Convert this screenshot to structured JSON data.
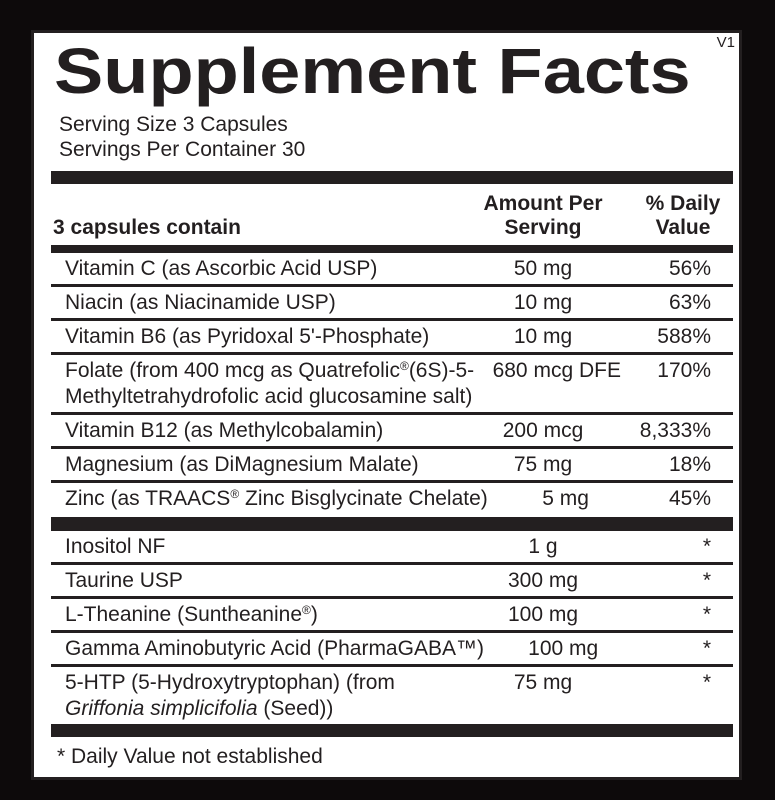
{
  "colors": {
    "ink": "#231f20",
    "paper": "#ffffff",
    "background": "#0d0a0b"
  },
  "version_tag": "V1",
  "title": "Supplement Facts",
  "serving_info": {
    "line1": "Serving Size 3 Capsules",
    "line2": "Servings Per Container 30"
  },
  "table": {
    "header": {
      "name_col": "3 capsules contain",
      "amount_col": "Amount Per Serving",
      "dv_col": "% Daily Value"
    },
    "sections": [
      {
        "rows": [
          {
            "name_segments": [
              {
                "type": "text",
                "value": "Vitamin C (as Ascorbic Acid USP)"
              }
            ],
            "amount": "50 mg",
            "daily_value": "56%"
          },
          {
            "name_segments": [
              {
                "type": "text",
                "value": "Niacin (as Niacinamide USP)"
              }
            ],
            "amount": "10 mg",
            "daily_value": "63%"
          },
          {
            "name_segments": [
              {
                "type": "text",
                "value": "Vitamin B6 (as Pyridoxal 5'-Phosphate)"
              }
            ],
            "amount": "10 mg",
            "daily_value": "588%"
          },
          {
            "name_segments": [
              {
                "type": "text",
                "value": "Folate (from 400 mcg as Quatrefolic"
              },
              {
                "type": "sup",
                "value": "®"
              },
              {
                "type": "text",
                "value": "(6S)-5-"
              },
              {
                "type": "break"
              },
              {
                "type": "text",
                "value": "Methyltetrahydrofolic acid glucosamine salt)"
              }
            ],
            "amount": "680 mcg DFE",
            "daily_value": "170%"
          },
          {
            "name_segments": [
              {
                "type": "text",
                "value": "Vitamin B12 (as Methylcobalamin)"
              }
            ],
            "amount": "200 mcg",
            "daily_value": "8,333%"
          },
          {
            "name_segments": [
              {
                "type": "text",
                "value": "Magnesium (as DiMagnesium Malate)"
              }
            ],
            "amount": "75 mg",
            "daily_value": "18%"
          },
          {
            "name_segments": [
              {
                "type": "text",
                "value": "Zinc (as TRAACS"
              },
              {
                "type": "sup",
                "value": "®"
              },
              {
                "type": "text",
                "value": " Zinc Bisglycinate Chelate)"
              }
            ],
            "amount": "5 mg",
            "daily_value": "45%"
          }
        ]
      },
      {
        "rows": [
          {
            "name_segments": [
              {
                "type": "text",
                "value": "Inositol NF"
              }
            ],
            "amount": "1 g",
            "daily_value": "*"
          },
          {
            "name_segments": [
              {
                "type": "text",
                "value": "Taurine USP"
              }
            ],
            "amount": "300 mg",
            "daily_value": "*"
          },
          {
            "name_segments": [
              {
                "type": "text",
                "value": "L-Theanine (Suntheanine"
              },
              {
                "type": "sup",
                "value": "®"
              },
              {
                "type": "text",
                "value": ")"
              }
            ],
            "amount": "100 mg",
            "daily_value": "*"
          },
          {
            "name_segments": [
              {
                "type": "text",
                "value": "Gamma Aminobutyric Acid (PharmaGABA™)"
              }
            ],
            "amount": "100 mg",
            "daily_value": "*"
          },
          {
            "name_segments": [
              {
                "type": "text",
                "value": "5-HTP (5-Hydroxytryptophan) (from"
              },
              {
                "type": "break"
              },
              {
                "type": "italic",
                "value": "Griffonia simplicifolia"
              },
              {
                "type": "text",
                "value": " (Seed))"
              }
            ],
            "amount": "75 mg",
            "daily_value": "*"
          }
        ]
      }
    ]
  },
  "footnote": "* Daily Value not established"
}
